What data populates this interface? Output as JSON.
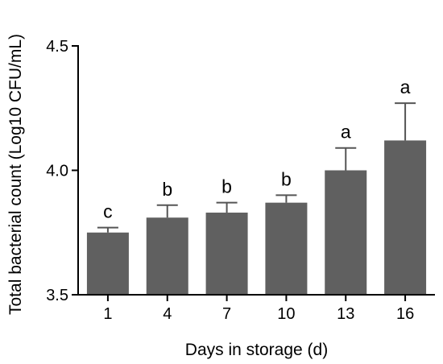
{
  "chart_data": {
    "type": "bar",
    "xlabel": "Days in storage (d)",
    "ylabel": "Total bacterial count (Log10 CFU/mL)",
    "categories": [
      "1",
      "4",
      "7",
      "10",
      "13",
      "16"
    ],
    "values": [
      3.75,
      3.81,
      3.83,
      3.87,
      4.0,
      4.12
    ],
    "error_upper": [
      3.77,
      3.86,
      3.87,
      3.9,
      4.09,
      4.27
    ],
    "significance_letters": [
      "c",
      "b",
      "b",
      "b",
      "a",
      "a"
    ],
    "ylim": [
      3.5,
      4.5
    ],
    "yticks": [
      "3.5",
      "4.0",
      "4.5"
    ],
    "grid": false,
    "bar_color": "#606060"
  }
}
